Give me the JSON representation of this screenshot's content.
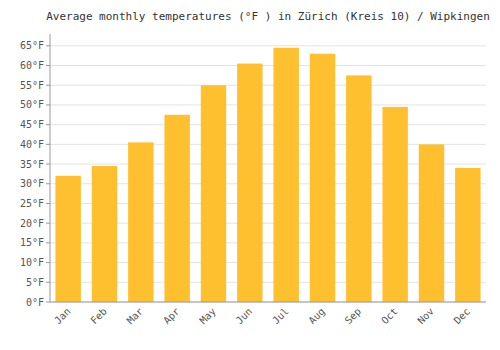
{
  "chart_data": {
    "type": "bar",
    "title": "Average monthly temperatures (°F ) in Zürich (Kreis 10) / Wipkingen",
    "categories": [
      "Jan",
      "Feb",
      "Mar",
      "Apr",
      "May",
      "Jun",
      "Jul",
      "Aug",
      "Sep",
      "Oct",
      "Nov",
      "Dec"
    ],
    "values": [
      32,
      34.5,
      40.5,
      47.5,
      55,
      60.5,
      64.5,
      63,
      57.5,
      49.5,
      40,
      34
    ],
    "color": "#FFC030",
    "ylim": [
      0,
      68
    ],
    "yticks": [
      {
        "value": 0,
        "label": "0°F"
      },
      {
        "value": 5,
        "label": "5°F"
      },
      {
        "value": 10,
        "label": "10°F"
      },
      {
        "value": 15,
        "label": "15°F"
      },
      {
        "value": 20,
        "label": "20°F"
      },
      {
        "value": 25,
        "label": "25°F"
      },
      {
        "value": 30,
        "label": "30°F"
      },
      {
        "value": 35,
        "label": "35°F"
      },
      {
        "value": 40,
        "label": "40°F"
      },
      {
        "value": 45,
        "label": "45°F"
      },
      {
        "value": 50,
        "label": "50°F"
      },
      {
        "value": 55,
        "label": "55°F"
      },
      {
        "value": 60,
        "label": "60°F"
      },
      {
        "value": 65,
        "label": "65°F"
      }
    ],
    "grid": true
  }
}
